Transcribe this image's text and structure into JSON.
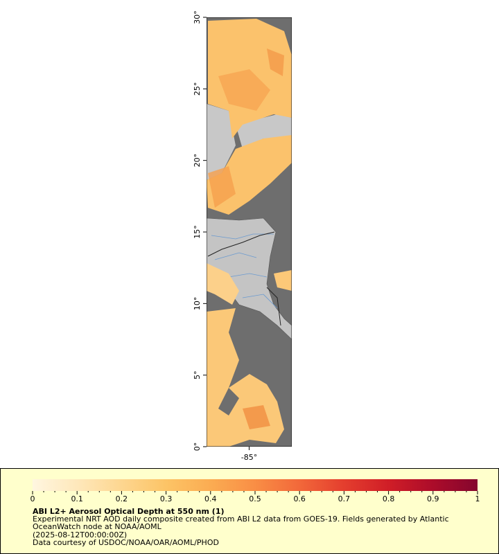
{
  "map": {
    "lat_range": [
      0,
      30
    ],
    "lon_range": [
      -88,
      -82
    ],
    "lat_ticks": [
      {
        "value": 0,
        "label": "0°"
      },
      {
        "value": 5,
        "label": "5°"
      },
      {
        "value": 10,
        "label": "10°"
      },
      {
        "value": 15,
        "label": "15°"
      },
      {
        "value": 20,
        "label": "20°"
      },
      {
        "value": 25,
        "label": "25°"
      },
      {
        "value": 30,
        "label": "30°"
      }
    ],
    "lon_ticks": [
      {
        "value": -85,
        "label": "-85°"
      }
    ]
  },
  "colorbar": {
    "range": [
      0,
      1
    ],
    "ticks": [
      0,
      0.1,
      0.2,
      0.3,
      0.4,
      0.5,
      0.6,
      0.7,
      0.8,
      0.9,
      1
    ],
    "colors": [
      "#fff6e0",
      "#fee8bb",
      "#fdd690",
      "#fcc466",
      "#fbac52",
      "#f98e45",
      "#f2683a",
      "#e43e2e",
      "#d01e27",
      "#ac0c2a",
      "#85062e"
    ]
  },
  "legend": {
    "title": "ABI L2+ Aerosol Optical Depth at 550 nm (1)",
    "lines": [
      "Experimental NRT AOD daily composite created from ABI L2 data from GOES-19. Fields generated by Atlantic",
      "OceanWatch node at NOAA/AOML",
      "(2025-08-12T00:00:00Z)",
      "Data courtesy of USDOC/NOAA/OAR/AOML/PHOD"
    ]
  }
}
